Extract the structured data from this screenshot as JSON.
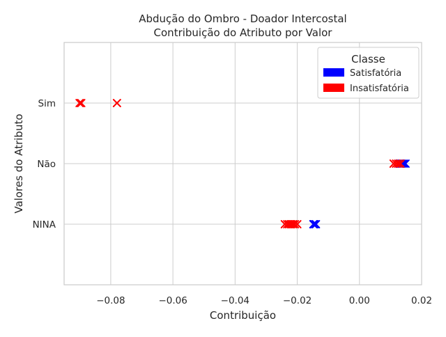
{
  "chart_data": {
    "type": "scatter",
    "title_line1": "Abdução do Ombro - Doador Intercostal",
    "title_line2": "Contribuição do Atributo por Valor",
    "xlabel": "Contribuição",
    "ylabel": "Valores do Atributo",
    "categories": [
      "Sim",
      "Não",
      "NINA"
    ],
    "xlim": [
      -0.095,
      0.02
    ],
    "x_ticks": [
      -0.08,
      -0.06,
      -0.04,
      -0.02,
      0.0,
      0.02
    ],
    "x_tick_labels": [
      "−0.08",
      "−0.06",
      "−0.04",
      "−0.02",
      "0.00",
      "0.02"
    ],
    "grid": true,
    "legend": {
      "title": "Classe",
      "position": "top-right",
      "entries": [
        {
          "label": "Satisfatória",
          "color": "#0000ff"
        },
        {
          "label": "Insatisfatória",
          "color": "#ff0000"
        }
      ]
    },
    "series": [
      {
        "name": "Satisfatória",
        "color": "#0000ff",
        "points": [
          {
            "category": "Não",
            "x": 0.0148
          },
          {
            "category": "Não",
            "x": 0.0142
          },
          {
            "category": "Não",
            "x": 0.0136
          },
          {
            "category": "Não",
            "x": 0.013
          },
          {
            "category": "NINA",
            "x": -0.0145
          },
          {
            "category": "NINA",
            "x": -0.014
          },
          {
            "category": "NINA",
            "x": -0.0148
          }
        ]
      },
      {
        "name": "Insatisfatória",
        "color": "#ff0000",
        "points": [
          {
            "category": "Sim",
            "x": -0.078
          },
          {
            "category": "Sim",
            "x": -0.09
          },
          {
            "category": "Sim",
            "x": -0.0895
          },
          {
            "category": "Não",
            "x": 0.011
          },
          {
            "category": "Não",
            "x": 0.0118
          },
          {
            "category": "Não",
            "x": 0.0125
          },
          {
            "category": "Não",
            "x": 0.0132
          },
          {
            "category": "NINA",
            "x": -0.024
          },
          {
            "category": "NINA",
            "x": -0.0232
          },
          {
            "category": "NINA",
            "x": -0.0226
          },
          {
            "category": "NINA",
            "x": -0.022
          },
          {
            "category": "NINA",
            "x": -0.0214
          },
          {
            "category": "NINA",
            "x": -0.0208
          },
          {
            "category": "NINA",
            "x": -0.02
          }
        ]
      }
    ]
  }
}
